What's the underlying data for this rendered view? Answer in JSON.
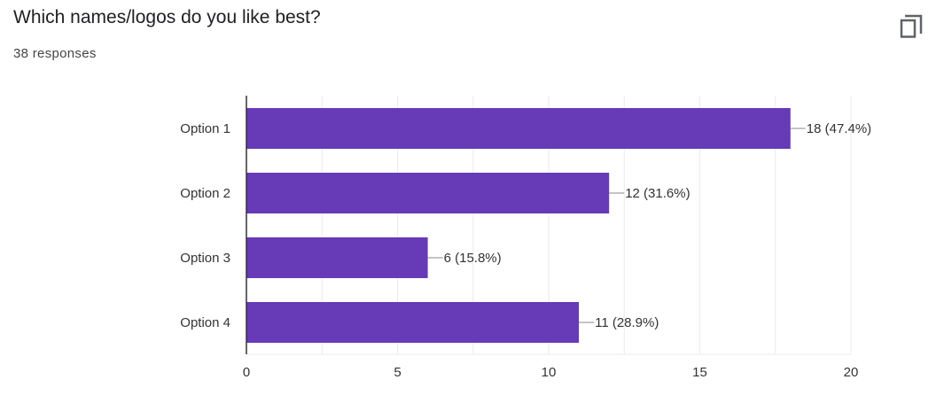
{
  "question": {
    "title": "Which names/logos do you like best?",
    "responses": "38 responses"
  },
  "icons": {
    "copy": "copy-icon"
  },
  "colors": {
    "bar": "#673ab7",
    "grid": "#ebebeb",
    "axis": "#333333"
  },
  "chart_data": {
    "type": "bar",
    "orientation": "horizontal",
    "categories": [
      "Option 1",
      "Option 2",
      "Option 3",
      "Option 4"
    ],
    "values": [
      18,
      12,
      6,
      11
    ],
    "labels": [
      "18 (47.4%)",
      "12 (31.6%)",
      "6 (15.8%)",
      "11 (28.9%)"
    ],
    "xlim": [
      0,
      20
    ],
    "xticks": [
      "0",
      "5",
      "10",
      "15",
      "20"
    ],
    "grid": true
  }
}
